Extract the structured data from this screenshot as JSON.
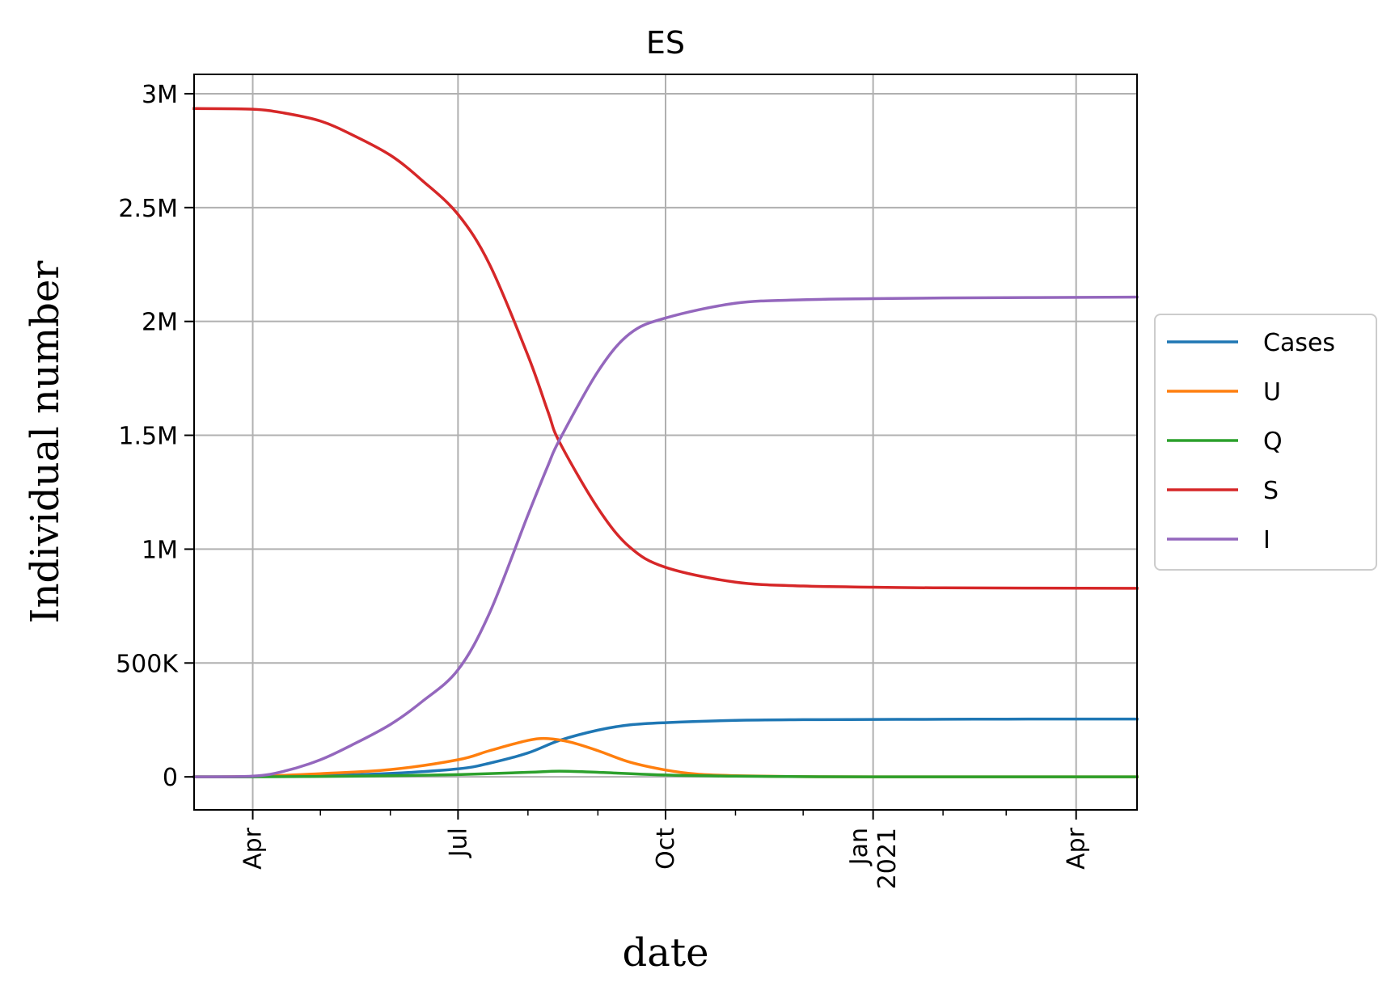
{
  "chart_data": {
    "type": "line",
    "title": "ES",
    "xlabel": "date",
    "ylabel": "Individual number",
    "x_ticks": [
      {
        "date": "2020-04-01",
        "label": "Apr"
      },
      {
        "date": "2020-07-01",
        "label": "Jul"
      },
      {
        "date": "2020-10-01",
        "label": "Oct"
      },
      {
        "date": "2021-01-01",
        "label": "Jan\n2021"
      },
      {
        "date": "2021-04-01",
        "label": "Apr"
      }
    ],
    "x_minor_ticks": [
      "2020-05-01",
      "2020-06-01",
      "2020-08-01",
      "2020-09-01",
      "2020-11-01",
      "2020-12-01",
      "2021-02-01",
      "2021-03-01"
    ],
    "xlim": [
      "2020-03-06",
      "2021-04-28"
    ],
    "y_ticks": [
      {
        "value": 0,
        "label": "0"
      },
      {
        "value": 500000,
        "label": "500K"
      },
      {
        "value": 1000000,
        "label": "1M"
      },
      {
        "value": 1500000,
        "label": "1.5M"
      },
      {
        "value": 2000000,
        "label": "2M"
      },
      {
        "value": 2500000,
        "label": "2.5M"
      },
      {
        "value": 3000000,
        "label": "3M"
      }
    ],
    "ylim": [
      -145000,
      3085000
    ],
    "grid": true,
    "legend_position": "right-outside",
    "series": [
      {
        "name": "Cases",
        "color": "#1f77b4",
        "x": [
          "2020-03-06",
          "2020-04-01",
          "2020-05-01",
          "2020-06-01",
          "2020-07-01",
          "2020-07-15",
          "2020-08-01",
          "2020-08-15",
          "2020-09-01",
          "2020-09-15",
          "2020-10-01",
          "2020-11-01",
          "2020-12-01",
          "2021-01-01",
          "2021-02-01",
          "2021-03-01",
          "2021-04-01",
          "2021-04-28"
        ],
        "y": [
          0,
          1000,
          5000,
          15000,
          35000,
          60000,
          105000,
          160000,
          205000,
          228000,
          238000,
          248000,
          251000,
          252000,
          253000,
          253500,
          254000,
          254000
        ]
      },
      {
        "name": "U",
        "color": "#ff7f0e",
        "x": [
          "2020-03-06",
          "2020-04-01",
          "2020-05-01",
          "2020-06-01",
          "2020-07-01",
          "2020-07-15",
          "2020-08-01",
          "2020-08-10",
          "2020-08-20",
          "2020-09-01",
          "2020-09-15",
          "2020-10-01",
          "2020-10-15",
          "2020-11-01",
          "2020-12-01",
          "2021-01-01",
          "2021-04-28"
        ],
        "y": [
          0,
          2000,
          14000,
          32000,
          75000,
          115000,
          160000,
          168000,
          152000,
          115000,
          65000,
          30000,
          12000,
          5000,
          1000,
          0,
          0
        ]
      },
      {
        "name": "Q",
        "color": "#2ca02c",
        "x": [
          "2020-03-06",
          "2020-04-01",
          "2020-05-01",
          "2020-06-01",
          "2020-07-01",
          "2020-08-01",
          "2020-08-15",
          "2020-09-01",
          "2020-10-01",
          "2020-11-01",
          "2020-12-01",
          "2021-01-01",
          "2021-04-28"
        ],
        "y": [
          0,
          0,
          2000,
          5000,
          10000,
          20000,
          25000,
          20000,
          8000,
          3000,
          1000,
          0,
          0
        ]
      },
      {
        "name": "S",
        "color": "#d62728",
        "x": [
          "2020-03-06",
          "2020-04-01",
          "2020-04-15",
          "2020-05-01",
          "2020-05-15",
          "2020-06-01",
          "2020-06-15",
          "2020-07-01",
          "2020-07-15",
          "2020-08-01",
          "2020-08-10",
          "2020-08-15",
          "2020-09-01",
          "2020-09-15",
          "2020-10-01",
          "2020-11-01",
          "2020-12-01",
          "2021-01-01",
          "2021-02-01",
          "2021-04-28"
        ],
        "y": [
          2935000,
          2932000,
          2915000,
          2880000,
          2820000,
          2730000,
          2620000,
          2470000,
          2250000,
          1850000,
          1600000,
          1470000,
          1180000,
          1010000,
          920000,
          855000,
          838000,
          833000,
          830000,
          828000
        ]
      },
      {
        "name": "I",
        "color": "#9467bd",
        "x": [
          "2020-03-06",
          "2020-04-01",
          "2020-04-15",
          "2020-05-01",
          "2020-05-15",
          "2020-06-01",
          "2020-06-15",
          "2020-07-01",
          "2020-07-15",
          "2020-08-01",
          "2020-08-10",
          "2020-08-15",
          "2020-09-01",
          "2020-09-15",
          "2020-10-01",
          "2020-11-01",
          "2020-12-01",
          "2021-01-01",
          "2021-02-01",
          "2021-04-28"
        ],
        "y": [
          0,
          3000,
          25000,
          75000,
          140000,
          230000,
          330000,
          470000,
          720000,
          1150000,
          1370000,
          1480000,
          1780000,
          1945000,
          2015000,
          2080000,
          2095000,
          2100000,
          2103000,
          2107000
        ]
      }
    ]
  }
}
